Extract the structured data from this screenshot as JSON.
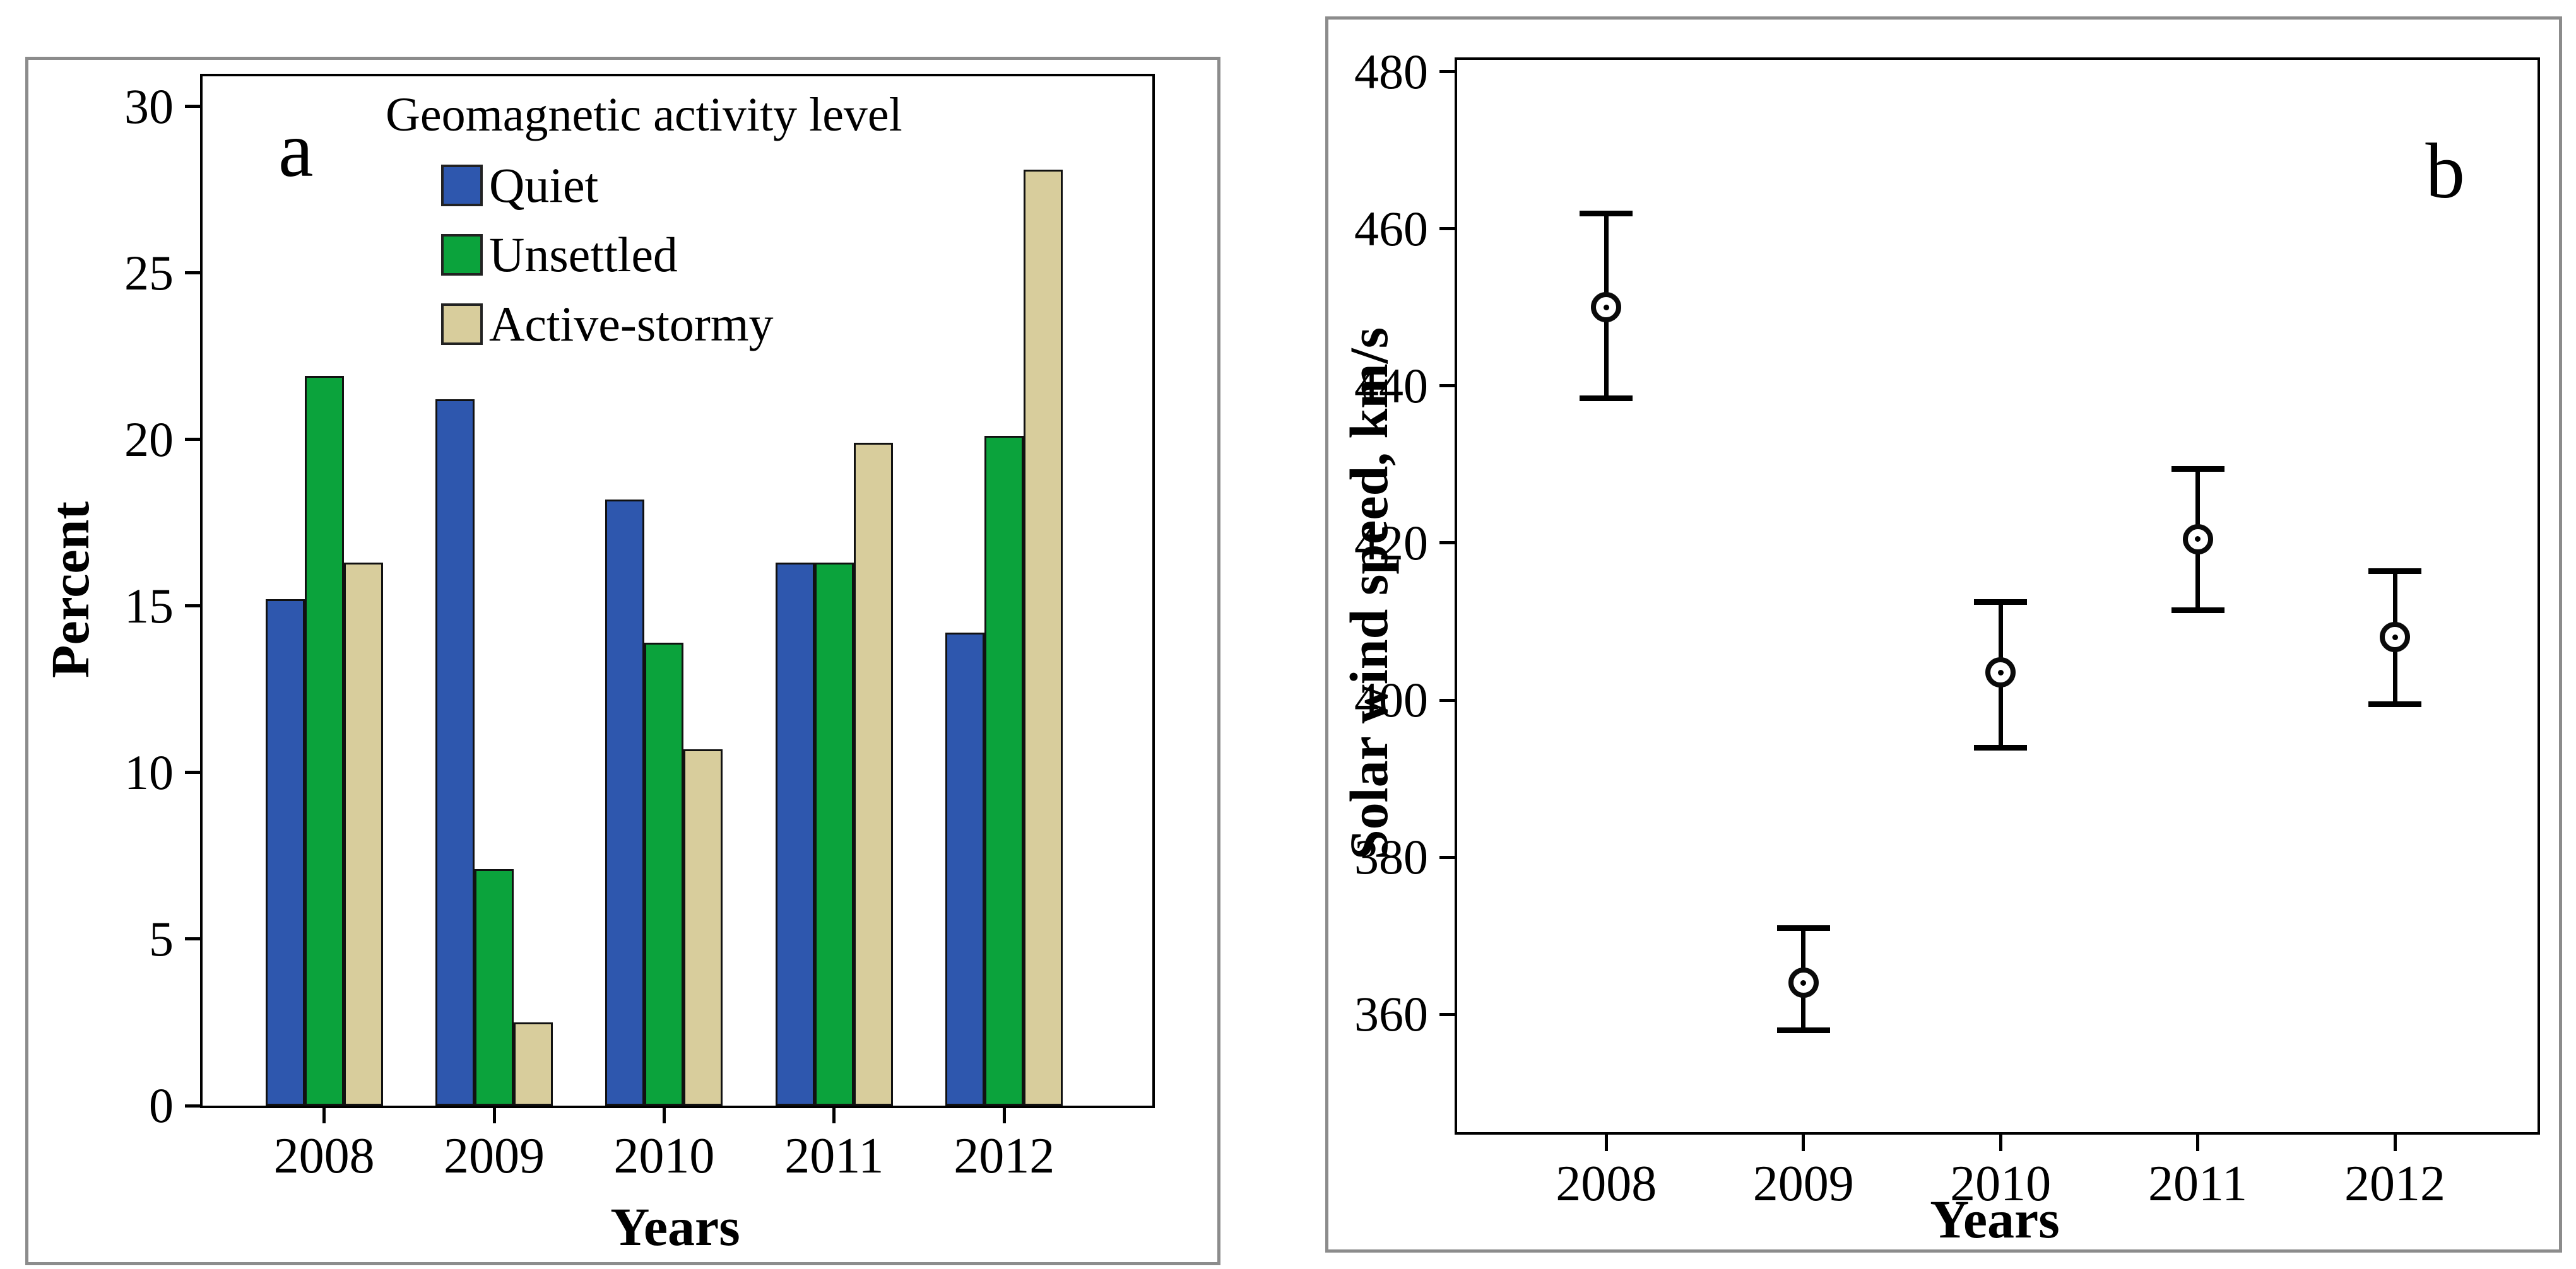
{
  "chart_data": [
    {
      "type": "bar",
      "panel_label": "a",
      "xlabel": "Years",
      "ylabel": "Percent",
      "legend_title": "Geomagnetic activity level",
      "legend_position": "inside-top-center",
      "grid": false,
      "categories": [
        "2008",
        "2009",
        "2010",
        "2011",
        "2012"
      ],
      "series": [
        {
          "name": "Quiet",
          "color": "#2E57AE",
          "values": [
            15.2,
            21.2,
            18.2,
            16.3,
            14.2
          ]
        },
        {
          "name": "Unsettled",
          "color": "#0BA33C",
          "values": [
            21.9,
            7.1,
            13.9,
            16.3,
            20.1
          ]
        },
        {
          "name": "Active-stormy",
          "color": "#D8CD9C",
          "values": [
            16.3,
            2.5,
            10.7,
            19.9,
            28.1
          ]
        }
      ],
      "ylim": [
        0,
        30.9
      ],
      "yticks": [
        0,
        5,
        10,
        15,
        20,
        25,
        30
      ]
    },
    {
      "type": "scatter",
      "panel_label": "b",
      "xlabel": "Years",
      "ylabel": "Solar wind speed, km/s",
      "grid": false,
      "marker": "open-circle-dot",
      "error_caps": true,
      "x": [
        "2008",
        "2009",
        "2010",
        "2011",
        "2012"
      ],
      "y": [
        450,
        364,
        403.5,
        420.5,
        408
      ],
      "y_err_low": [
        438.5,
        358,
        394,
        411.5,
        399.5
      ],
      "y_err_high": [
        462,
        371,
        412.5,
        429.5,
        416.5
      ],
      "ylim": [
        345,
        481.5
      ],
      "yticks": [
        360,
        380,
        400,
        420,
        440,
        460,
        480
      ]
    }
  ],
  "colors": {
    "panel_border": "#8C8C8C",
    "axis": "#000000",
    "background": "#FFFFFF"
  }
}
